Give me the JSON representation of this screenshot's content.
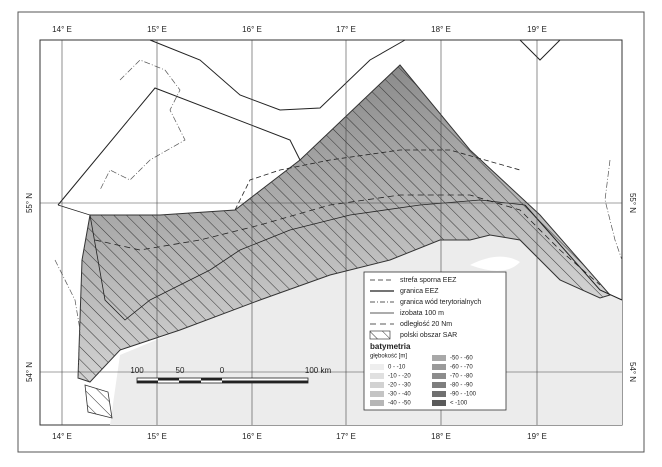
{
  "graticule": {
    "top": [
      "14° E",
      "15° E",
      "16° E",
      "17° E",
      "18° E",
      "19° E"
    ],
    "bottom": [
      "14° E",
      "15° E",
      "16° E",
      "17° E",
      "18° E",
      "19° E"
    ],
    "left": [
      "55° N",
      "54° N"
    ],
    "right": [
      "55° N",
      "54° N"
    ]
  },
  "legend": {
    "items": [
      "strefa sporna EEZ",
      "granica EEZ",
      "granica wód terytorialnych",
      "izobata 100 m",
      "odległość 20 Nm",
      "polski obszar SAR"
    ],
    "bathymetry_title": "batymetria",
    "depth_label": "głębokość [m]",
    "depth_classes": [
      "0 - -10",
      "-10 - -20",
      "-20 - -30",
      "-30 - -40",
      "-40 - -50",
      "-50 - -60",
      "-60 - -70",
      "-70 - -80",
      "-80 - -90",
      "-90 - -100",
      "< -100"
    ]
  },
  "scale_bar": {
    "labels": [
      "100",
      "50",
      "0",
      "100 km"
    ]
  }
}
